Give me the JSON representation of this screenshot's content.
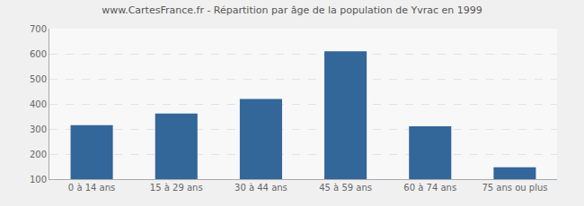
{
  "chart_data": {
    "type": "bar",
    "title": "www.CartesFrance.fr - Répartition par âge de la population de Yvrac en 1999",
    "categories": [
      "0 à 14 ans",
      "15 à 29 ans",
      "30 à 44 ans",
      "45 à 59 ans",
      "60 à 74 ans",
      "75 ans ou plus"
    ],
    "values": [
      315,
      362,
      420,
      610,
      311,
      147
    ],
    "color": "#336699",
    "ylim": [
      100,
      700
    ],
    "yticks": [
      100,
      200,
      300,
      400,
      500,
      600,
      700
    ],
    "grid": true
  }
}
